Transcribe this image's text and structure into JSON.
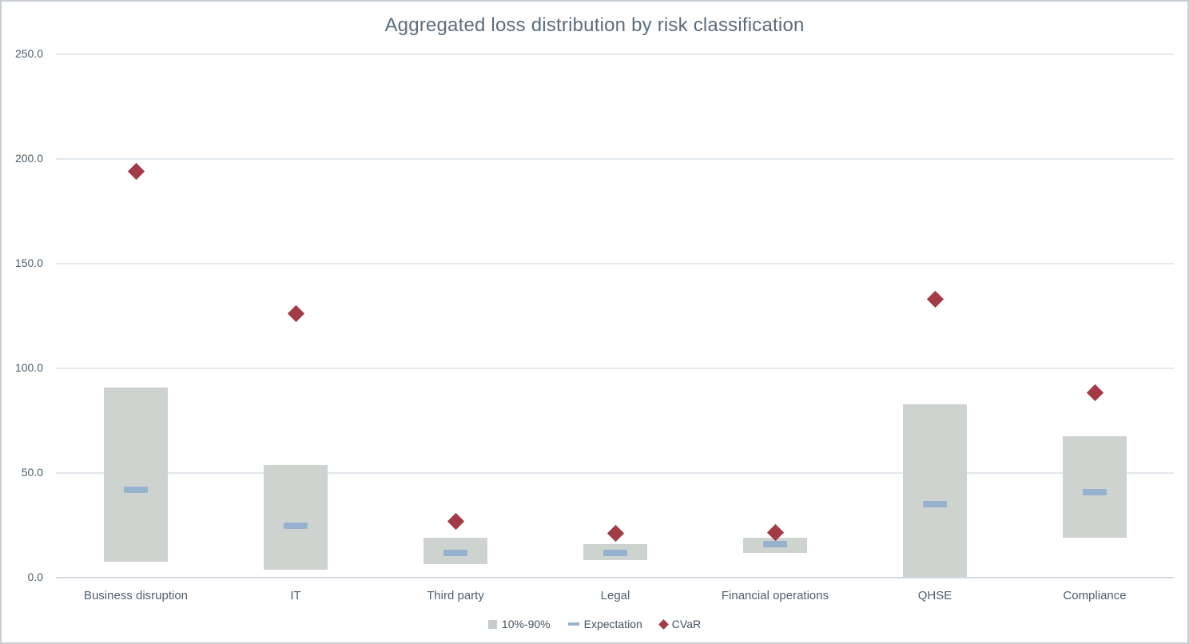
{
  "chart_data": {
    "type": "bar",
    "subtype": "range-bars-with-point-markers",
    "title": "Aggregated loss distribution by risk classification",
    "categories": [
      "Business disruption",
      "IT",
      "Third party",
      "Legal",
      "Financial operations",
      "QHSE",
      "Compliance"
    ],
    "series": [
      {
        "name": "10%-90%",
        "type": "range_bar",
        "low": [
          7.5,
          4,
          6.5,
          8.5,
          12,
          0.5,
          19
        ],
        "high": [
          91,
          54,
          19,
          16,
          19,
          83,
          67.5
        ],
        "color": "#ced3cf"
      },
      {
        "name": "Expectation",
        "type": "dash_marker",
        "values": [
          42,
          25,
          12,
          12,
          16,
          35,
          41
        ],
        "color": "#97b2ce"
      },
      {
        "name": "CVaR",
        "type": "diamond_marker",
        "values": [
          194,
          126,
          27,
          21,
          21.5,
          133,
          88.5
        ],
        "color": "#a23b46"
      }
    ],
    "y_axis": {
      "min": 0,
      "max": 250,
      "tick_step": 50,
      "tick_labels": [
        "0.0",
        "50.0",
        "100.0",
        "150.0",
        "200.0",
        "250.0"
      ]
    },
    "legend_position": "bottom",
    "grid": true
  },
  "colors": {
    "background": "#ffffff",
    "border": "#c9ced4",
    "gridline": "#e3e8ee",
    "axis_line": "#d2d9e2",
    "title_text": "#5b6d7d",
    "tick_text": "#4c5e6d",
    "category_text": "#4e6070",
    "legend_text": "#46525d",
    "bar_fill": "#ced3cf",
    "expectation_fill": "#97b2ce",
    "cvar_fill": "#a23b46"
  }
}
